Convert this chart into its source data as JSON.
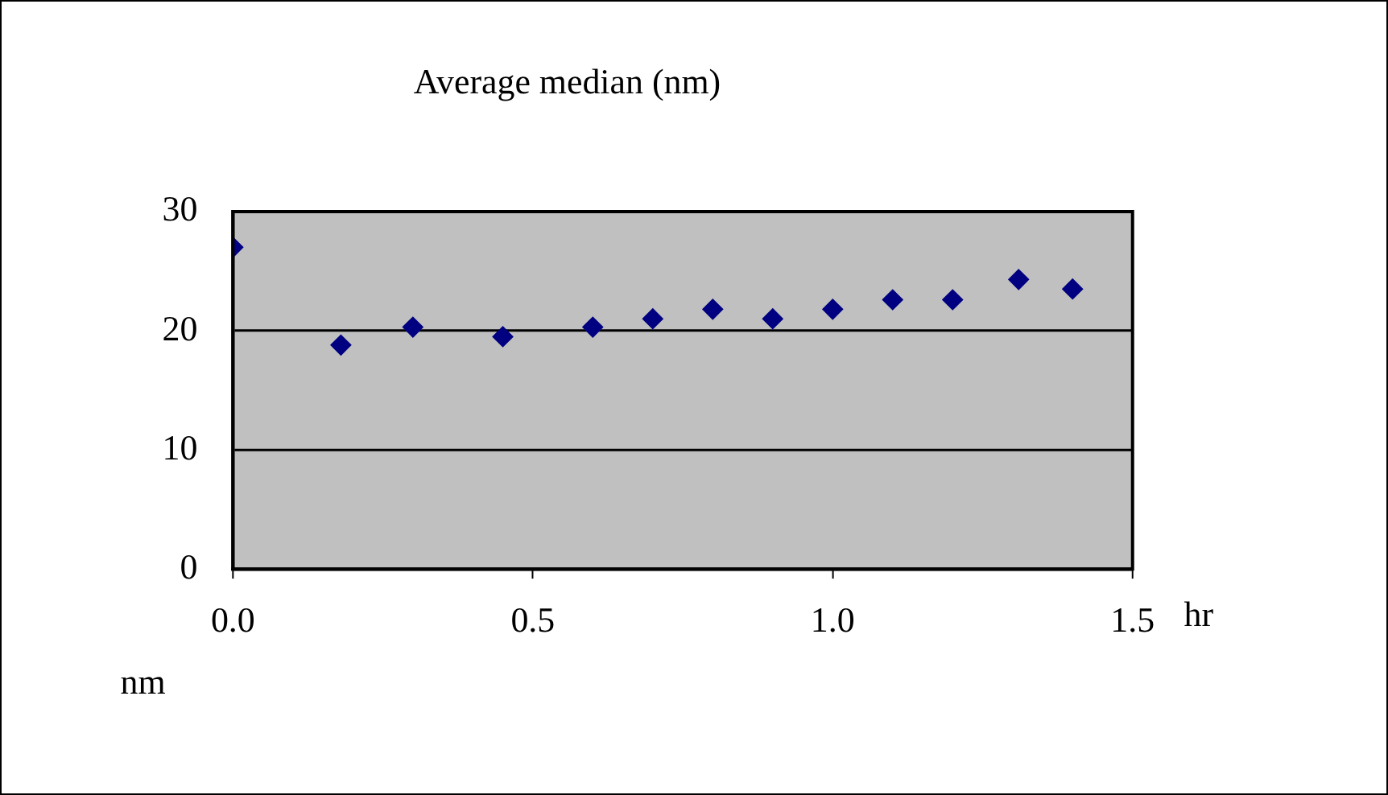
{
  "chart_data": {
    "type": "scatter",
    "title": "Average median (nm)",
    "xlabel": "hr",
    "ylabel": "nm",
    "x": [
      0,
      0.18,
      0.3,
      0.45,
      0.6,
      0.7,
      0.8,
      0.9,
      1.0,
      1.1,
      1.2,
      1.31,
      1.4
    ],
    "series": [
      {
        "color": "#000080",
        "values": [
          27.0,
          18.8,
          20.3,
          19.5,
          20.3,
          21.0,
          21.8,
          21.0,
          21.8,
          22.6,
          22.6,
          24.3,
          23.5
        ]
      }
    ],
    "xlim": [
      0,
      1.5
    ],
    "xticks": [
      {
        "value": 0,
        "label": "0.0"
      },
      0.5,
      {
        "value": 1,
        "label": "1.0"
      },
      1.5
    ],
    "ylim": [
      0,
      30
    ],
    "yticks": [
      0,
      10,
      20,
      30
    ],
    "grid": "y",
    "legend": false,
    "marker": "diamond"
  }
}
